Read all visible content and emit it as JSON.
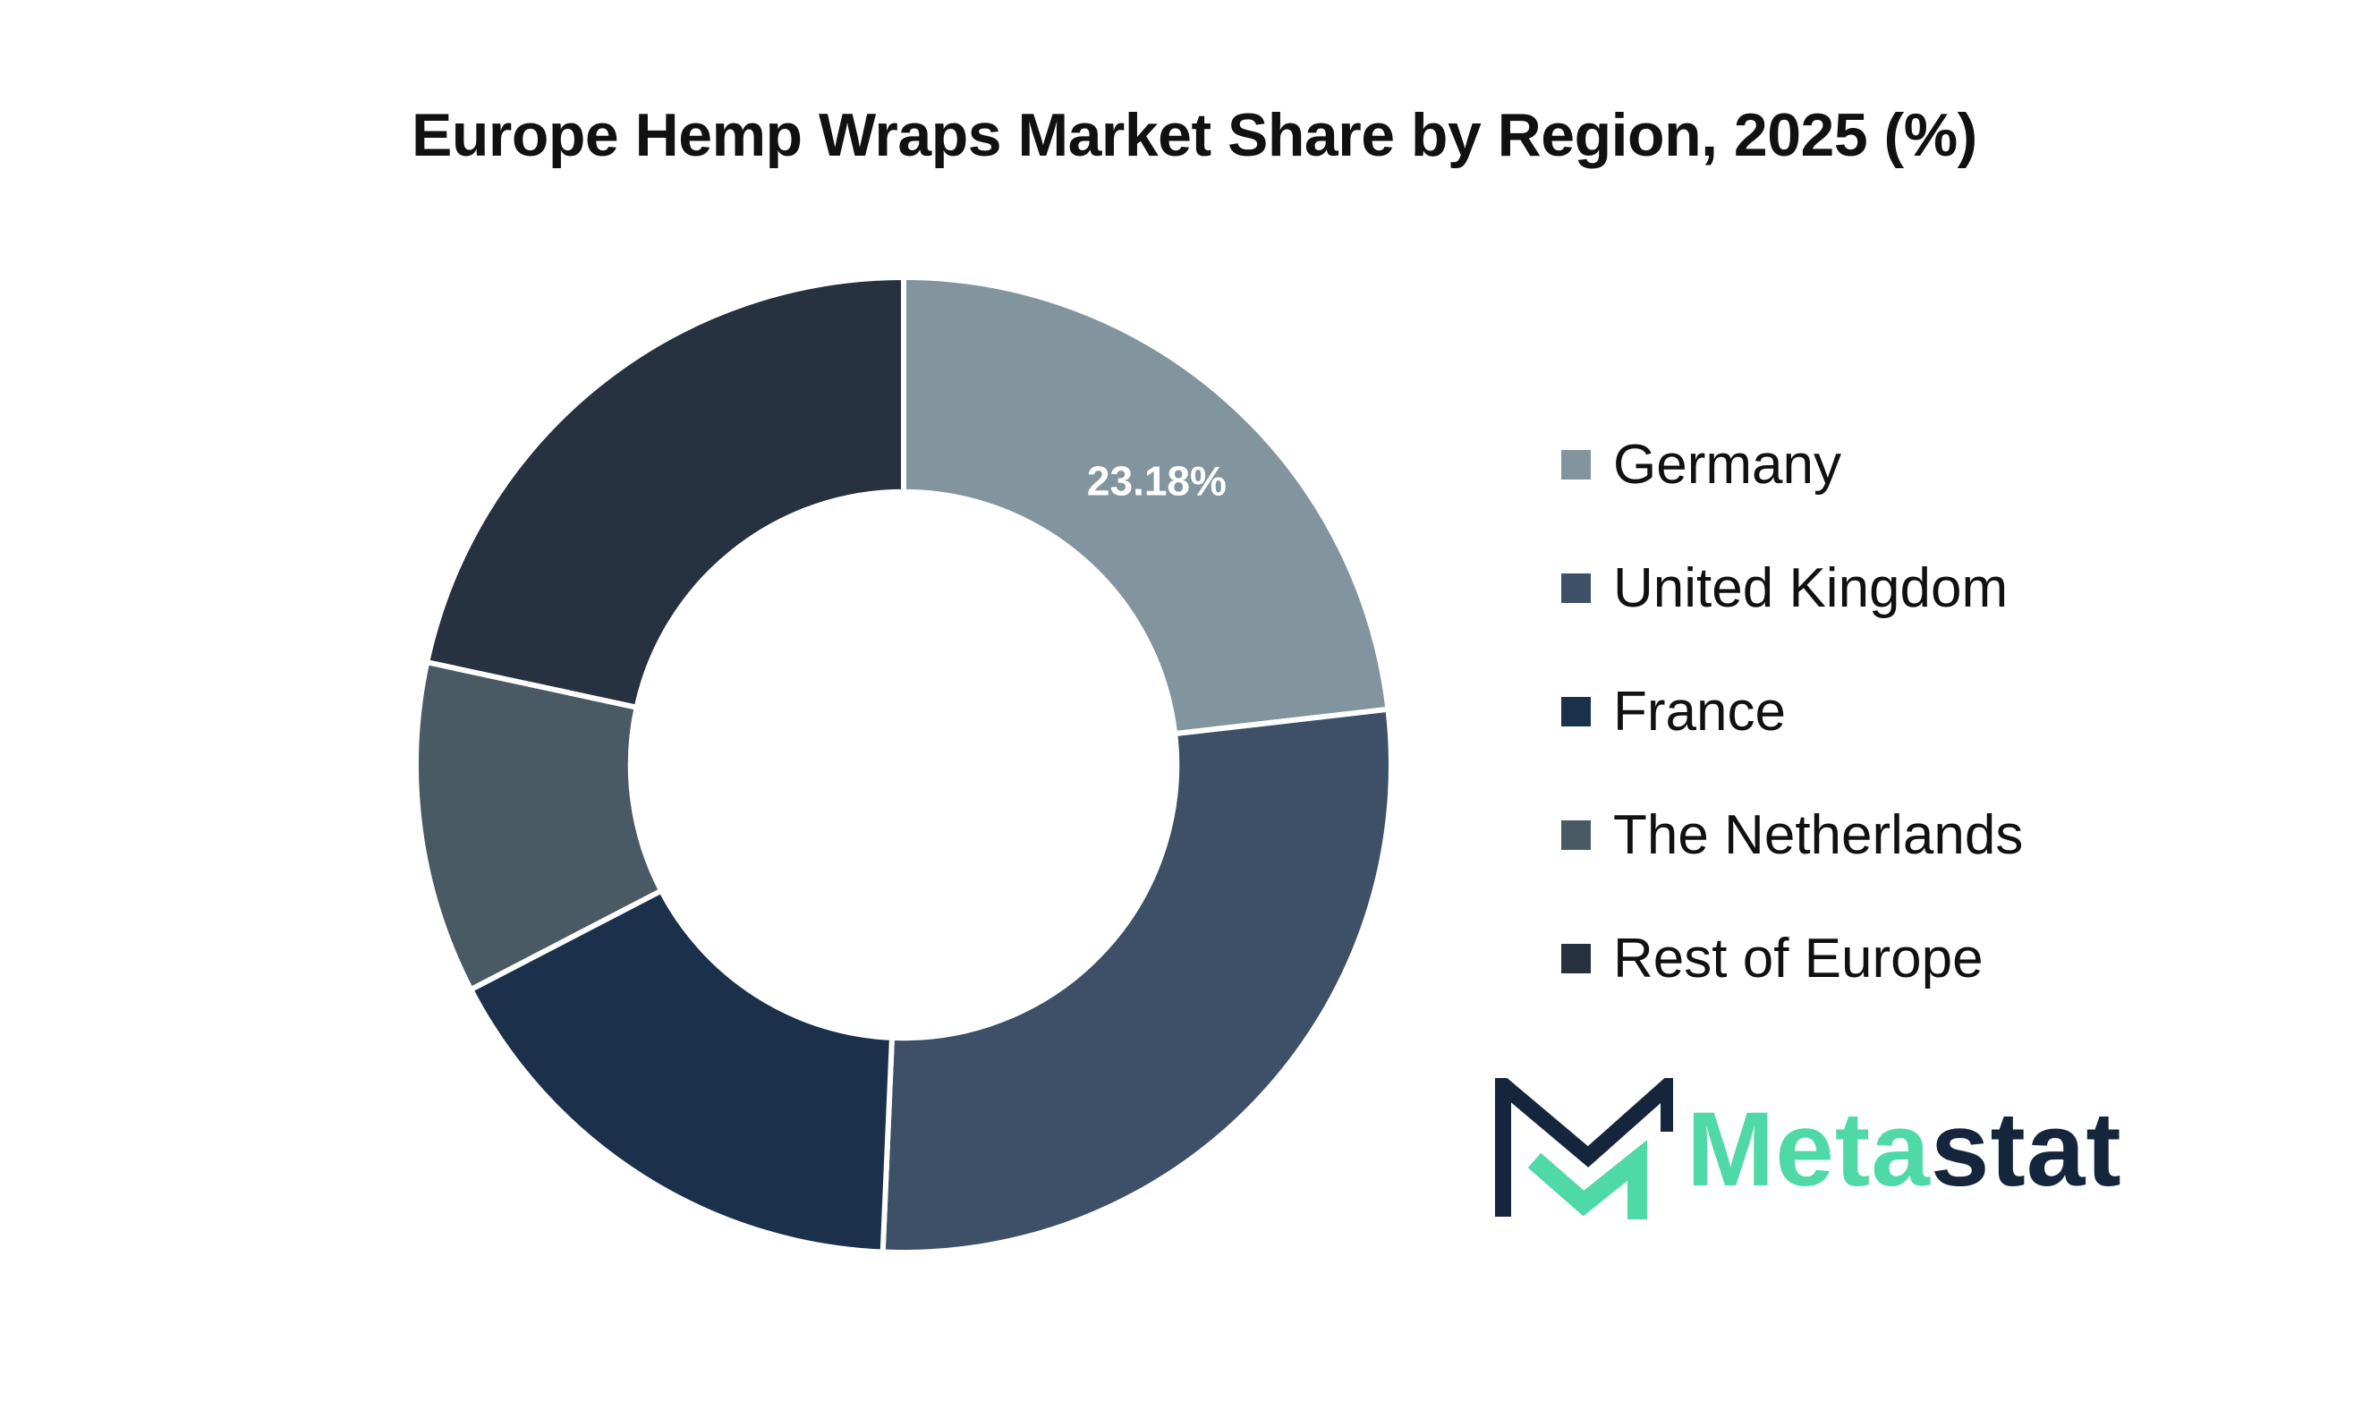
{
  "chart_data": {
    "type": "pie",
    "title": "Europe Hemp Wraps Market Share by Region, 2025 (%)",
    "categories": [
      "Germany",
      "United Kingdom",
      "France",
      "The Netherlands",
      "Rest of Europe"
    ],
    "values": [
      23.18,
      27.5,
      16.7,
      11.0,
      21.62
    ],
    "colors": [
      "#82959F",
      "#3D5067",
      "#1B314B",
      "#4A5A64",
      "#26323F"
    ],
    "data_labels": [
      "23.18%",
      "",
      "",
      "",
      ""
    ],
    "inner_radius_ratio": 0.56,
    "legend_position": "right"
  },
  "logo": {
    "text_part1": "Meta",
    "text_part2": "stat",
    "color_primary": "#4ED9A6",
    "color_secondary": "#15263C"
  }
}
